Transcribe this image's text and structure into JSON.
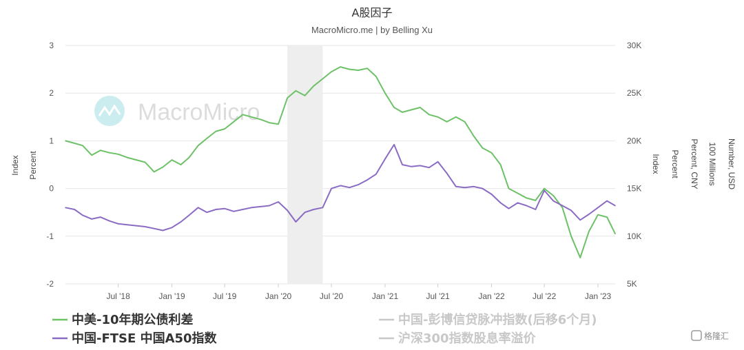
{
  "chart_data": {
    "type": "line",
    "title": "A股因子",
    "subtitle": "MacroMicro.me | by Belling Xu",
    "watermark": "MacroMicro",
    "corner_logo": "格隆汇",
    "x_ticks": [
      "Jul '18",
      "Jan '19",
      "Jul '19",
      "Jan '20",
      "Jul '20",
      "Jan '21",
      "Jul '21",
      "Jan '22",
      "Jul '22",
      "Jan '23"
    ],
    "x_tick_dates": [
      "2018-07-01",
      "2019-01-01",
      "2019-07-01",
      "2020-01-01",
      "2020-07-01",
      "2021-01-01",
      "2021-07-01",
      "2022-01-01",
      "2022-07-01",
      "2023-01-01"
    ],
    "x_range": [
      "2018-01-01",
      "2023-03-01"
    ],
    "left_axis": {
      "ticks": [
        "3",
        "2",
        "1",
        "0",
        "-1",
        "-2"
      ],
      "ylim": [
        -2,
        3
      ],
      "labels": [
        "Index",
        "Percent"
      ]
    },
    "right_axis": {
      "ticks": [
        "30K",
        "25K",
        "20K",
        "15K",
        "10K",
        "5K"
      ],
      "ylim": [
        5000,
        30000
      ],
      "labels": [
        "Index",
        "Percent",
        "Percent, CNY",
        "100 Millions",
        "Number, USD"
      ]
    },
    "shaded_period": [
      "2020-02-01",
      "2020-06-01"
    ],
    "series": [
      {
        "name": "中美-10年期公债利差",
        "color": "#6cc167",
        "axis": "left",
        "dates": [
          "2018-01-01",
          "2018-02-01",
          "2018-03-01",
          "2018-04-01",
          "2018-05-01",
          "2018-06-01",
          "2018-07-01",
          "2018-08-01",
          "2018-09-01",
          "2018-10-01",
          "2018-11-01",
          "2018-12-01",
          "2019-01-01",
          "2019-02-01",
          "2019-03-01",
          "2019-04-01",
          "2019-05-01",
          "2019-06-01",
          "2019-07-01",
          "2019-08-01",
          "2019-09-01",
          "2019-10-01",
          "2019-11-01",
          "2019-12-01",
          "2020-01-01",
          "2020-02-01",
          "2020-03-01",
          "2020-04-01",
          "2020-05-01",
          "2020-06-01",
          "2020-07-01",
          "2020-08-01",
          "2020-09-01",
          "2020-10-01",
          "2020-11-01",
          "2020-12-01",
          "2021-01-01",
          "2021-02-01",
          "2021-03-01",
          "2021-04-01",
          "2021-05-01",
          "2021-06-01",
          "2021-07-01",
          "2021-08-01",
          "2021-09-01",
          "2021-10-01",
          "2021-11-01",
          "2021-12-01",
          "2022-01-01",
          "2022-02-01",
          "2022-03-01",
          "2022-04-01",
          "2022-05-01",
          "2022-06-01",
          "2022-07-01",
          "2022-08-01",
          "2022-09-01",
          "2022-10-01",
          "2022-11-01",
          "2022-12-01",
          "2023-01-01",
          "2023-02-01",
          "2023-03-01"
        ],
        "values": [
          1.0,
          0.95,
          0.9,
          0.7,
          0.8,
          0.75,
          0.72,
          0.65,
          0.6,
          0.55,
          0.35,
          0.45,
          0.6,
          0.5,
          0.65,
          0.9,
          1.05,
          1.2,
          1.25,
          1.4,
          1.55,
          1.5,
          1.45,
          1.38,
          1.35,
          1.9,
          2.05,
          1.95,
          2.15,
          2.3,
          2.45,
          2.55,
          2.5,
          2.48,
          2.52,
          2.35,
          2.0,
          1.7,
          1.6,
          1.65,
          1.7,
          1.55,
          1.5,
          1.4,
          1.5,
          1.4,
          1.1,
          0.85,
          0.75,
          0.5,
          0.0,
          -0.1,
          -0.2,
          -0.25,
          0.0,
          -0.15,
          -0.4,
          -1.0,
          -1.45,
          -0.9,
          -0.55,
          -0.6,
          -0.95
        ]
      },
      {
        "name": "中国-FTSE 中国A50指数",
        "color": "#8a6bc4",
        "axis": "right",
        "dates": [
          "2018-01-01",
          "2018-02-01",
          "2018-03-01",
          "2018-04-01",
          "2018-05-01",
          "2018-06-01",
          "2018-07-01",
          "2018-08-01",
          "2018-09-01",
          "2018-10-01",
          "2018-11-01",
          "2018-12-01",
          "2019-01-01",
          "2019-02-01",
          "2019-03-01",
          "2019-04-01",
          "2019-05-01",
          "2019-06-01",
          "2019-07-01",
          "2019-08-01",
          "2019-09-01",
          "2019-10-01",
          "2019-11-01",
          "2019-12-01",
          "2020-01-01",
          "2020-02-01",
          "2020-03-01",
          "2020-04-01",
          "2020-05-01",
          "2020-06-01",
          "2020-07-01",
          "2020-08-01",
          "2020-09-01",
          "2020-10-01",
          "2020-11-01",
          "2020-12-01",
          "2021-01-01",
          "2021-02-01",
          "2021-03-01",
          "2021-04-01",
          "2021-05-01",
          "2021-06-01",
          "2021-07-01",
          "2021-08-01",
          "2021-09-01",
          "2021-10-01",
          "2021-11-01",
          "2021-12-01",
          "2022-01-01",
          "2022-02-01",
          "2022-03-01",
          "2022-04-01",
          "2022-05-01",
          "2022-06-01",
          "2022-07-01",
          "2022-08-01",
          "2022-09-01",
          "2022-10-01",
          "2022-11-01",
          "2022-12-01",
          "2023-01-01",
          "2023-02-01",
          "2023-03-01"
        ],
        "values": [
          13000,
          12800,
          12200,
          11800,
          12000,
          11600,
          11300,
          11200,
          11100,
          11000,
          10800,
          10600,
          10900,
          11500,
          12200,
          13000,
          12500,
          12800,
          12900,
          12600,
          12800,
          13000,
          13100,
          13200,
          13600,
          12700,
          11500,
          12500,
          12800,
          13000,
          15000,
          15300,
          15100,
          15400,
          15900,
          16500,
          18100,
          19600,
          17500,
          17300,
          17400,
          17200,
          17800,
          16600,
          15200,
          15100,
          15200,
          15000,
          14400,
          13500,
          12900,
          13500,
          13200,
          12800,
          14800,
          13700,
          13200,
          12700,
          11700,
          12300,
          13000,
          13700,
          13200
        ]
      },
      {
        "name": "中国-彭博信贷脉冲指数(后移6个月)",
        "color": "#c8c8c8",
        "axis": "right",
        "hidden": true
      },
      {
        "name": "沪深300指数股息率溢价",
        "color": "#c8c8c8",
        "axis": "right",
        "hidden": true
      }
    ]
  }
}
